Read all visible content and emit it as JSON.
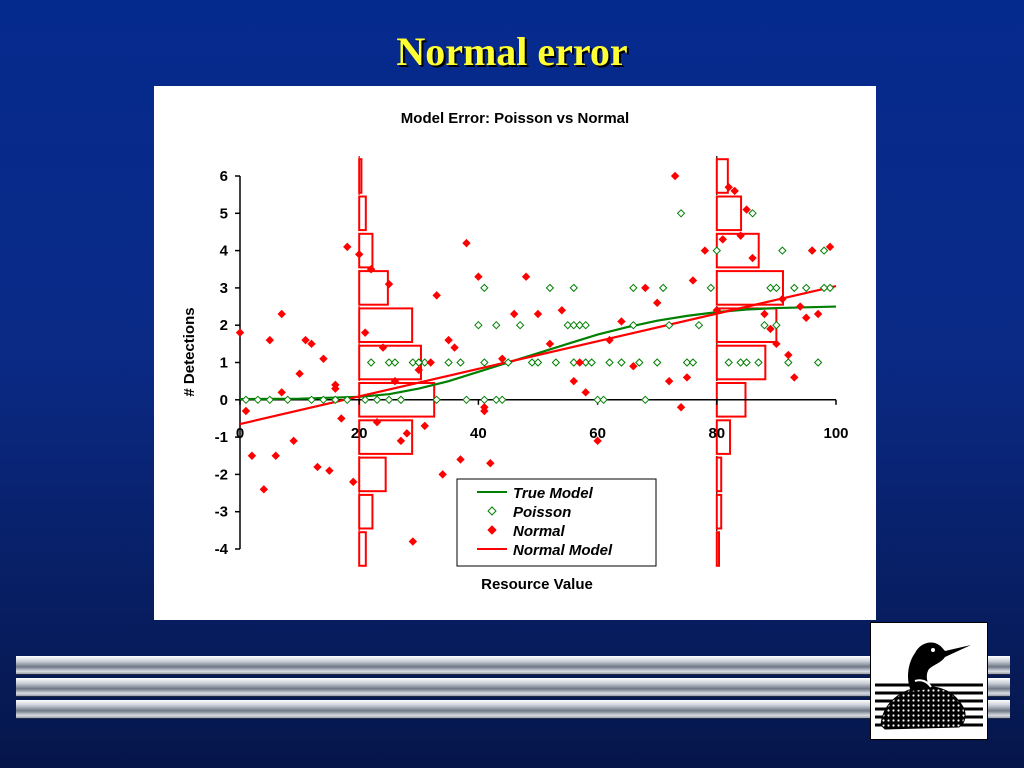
{
  "slide": {
    "title": "Normal error"
  },
  "chart_data": {
    "type": "scatter",
    "title": "Model Error: Poisson vs Normal",
    "xlabel": "Resource Value",
    "ylabel": "# Detections",
    "xlim": [
      0,
      100
    ],
    "ylim": [
      -4,
      6
    ],
    "x_ticks": [
      0,
      20,
      40,
      60,
      80,
      100
    ],
    "y_ticks": [
      -4,
      -3,
      -2,
      -1,
      0,
      1,
      2,
      3,
      4,
      5,
      6
    ],
    "x_tick_labels": [
      "0",
      "20",
      "40",
      "60",
      "80",
      "100"
    ],
    "y_tick_labels": [
      "-4",
      "-3",
      "-2",
      "-1",
      "0",
      "1",
      "2",
      "3",
      "4",
      "5",
      "6"
    ],
    "grid": false,
    "legend_position": "bottom-center",
    "colors": {
      "true_model": "#008000",
      "normal": "#ff0000"
    },
    "series": [
      {
        "name": "True Model",
        "kind": "line",
        "x": [
          0,
          10,
          20,
          25,
          30,
          35,
          40,
          45,
          50,
          55,
          60,
          65,
          70,
          75,
          80,
          85,
          90,
          95,
          100
        ],
        "y": [
          0.02,
          0.03,
          0.08,
          0.15,
          0.3,
          0.5,
          0.75,
          1.0,
          1.25,
          1.5,
          1.75,
          1.95,
          2.12,
          2.25,
          2.35,
          2.42,
          2.46,
          2.48,
          2.5
        ]
      },
      {
        "name": "Poisson",
        "kind": "scatter",
        "x": [
          1,
          3,
          5,
          8,
          12,
          14,
          16,
          18,
          21,
          22,
          23,
          25,
          26,
          27,
          29,
          30,
          31,
          33,
          35,
          37,
          38,
          40,
          41,
          43,
          44,
          45,
          47,
          49,
          50,
          52,
          53,
          55,
          56,
          57,
          58,
          59,
          60,
          61,
          62,
          64,
          66,
          67,
          68,
          70,
          71,
          72,
          74,
          75,
          76,
          77,
          79,
          80,
          82,
          84,
          85,
          86,
          87,
          88,
          89,
          90,
          91,
          92,
          93,
          95,
          96,
          97,
          98,
          99,
          25,
          27,
          30,
          41,
          43,
          56,
          57,
          41,
          56,
          58,
          66,
          90,
          98
        ],
        "y": [
          0,
          0,
          0,
          0,
          0,
          0,
          0,
          0,
          0,
          1,
          0,
          1,
          1,
          0,
          1,
          1,
          1,
          0,
          1,
          1,
          0,
          2,
          0,
          0,
          0,
          1,
          2,
          1,
          1,
          3,
          1,
          2,
          1,
          2,
          1,
          1,
          0,
          0,
          1,
          1,
          3,
          1,
          0,
          1,
          3,
          2,
          5,
          1,
          1,
          2,
          3,
          4,
          1,
          1,
          1,
          5,
          1,
          2,
          3,
          2,
          4,
          1,
          3,
          3,
          4,
          1,
          4,
          3,
          0,
          0,
          1,
          1,
          2,
          2,
          2,
          3,
          3,
          2,
          2,
          3,
          3
        ]
      },
      {
        "name": "Normal",
        "kind": "scatter",
        "x": [
          0,
          1,
          2,
          4,
          5,
          6,
          7,
          9,
          10,
          11,
          12,
          13,
          14,
          15,
          16,
          17,
          18,
          19,
          20,
          21,
          22,
          23,
          24,
          25,
          26,
          27,
          28,
          29,
          30,
          31,
          32,
          33,
          34,
          35,
          36,
          37,
          38,
          40,
          41,
          42,
          44,
          46,
          48,
          50,
          52,
          54,
          56,
          58,
          60,
          62,
          64,
          66,
          68,
          70,
          72,
          73,
          74,
          75,
          76,
          78,
          80,
          81,
          82,
          83,
          84,
          85,
          86,
          88,
          89,
          90,
          91,
          92,
          93,
          94,
          95,
          96,
          97,
          99,
          57,
          41,
          16,
          7
        ],
        "y": [
          1.8,
          -0.3,
          -1.5,
          -2.4,
          1.6,
          -1.5,
          2.3,
          -1.1,
          0.7,
          1.6,
          1.5,
          -1.8,
          1.1,
          -1.9,
          0.4,
          -0.5,
          4.1,
          -2.2,
          3.9,
          1.8,
          3.5,
          -0.6,
          1.4,
          3.1,
          0.5,
          -1.1,
          -0.9,
          -3.8,
          0.8,
          -0.7,
          1.0,
          2.8,
          -2.0,
          1.6,
          1.4,
          -1.6,
          4.2,
          3.3,
          -0.3,
          -1.7,
          1.1,
          2.3,
          3.3,
          2.3,
          1.5,
          2.4,
          0.5,
          0.2,
          -1.1,
          1.6,
          2.1,
          0.9,
          3.0,
          2.6,
          0.5,
          6.0,
          -0.2,
          0.6,
          3.2,
          4.0,
          2.4,
          4.3,
          5.7,
          5.6,
          4.4,
          5.1,
          3.8,
          2.3,
          1.9,
          1.5,
          2.7,
          1.2,
          0.6,
          2.5,
          2.2,
          4.0,
          2.3,
          4.1,
          1.0,
          -0.2,
          0.3,
          0.2
        ]
      },
      {
        "name": "Normal Model",
        "kind": "line",
        "x": [
          0,
          100
        ],
        "y": [
          -0.65,
          3.05
        ]
      }
    ],
    "histograms": [
      {
        "at_x": 20,
        "bins_y": [
          -4,
          -3,
          -2,
          -1,
          0,
          1,
          2,
          3,
          4,
          5,
          6
        ],
        "relative_counts": [
          0.03,
          0.06,
          0.12,
          0.24,
          0.34,
          0.28,
          0.24,
          0.13,
          0.06,
          0.03,
          0.01
        ]
      },
      {
        "at_x": 80,
        "bins_y": [
          -4,
          -3,
          -2,
          -1,
          0,
          1,
          2,
          3,
          4,
          5,
          6
        ],
        "relative_counts": [
          0.01,
          0.02,
          0.02,
          0.06,
          0.13,
          0.22,
          0.27,
          0.3,
          0.19,
          0.11,
          0.05
        ]
      }
    ]
  }
}
